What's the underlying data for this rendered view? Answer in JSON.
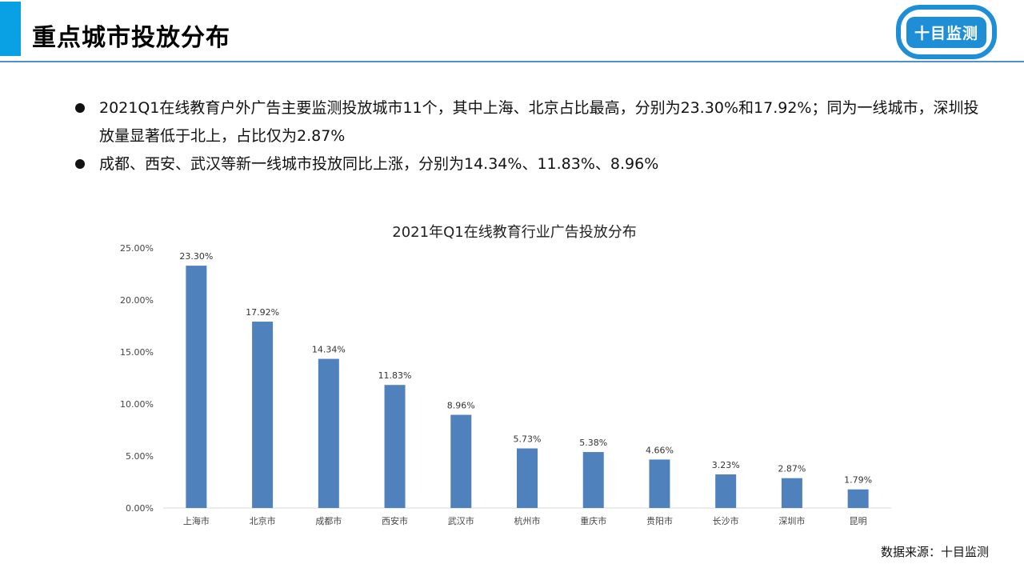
{
  "header": {
    "title": "重点城市投放分布",
    "logo_text": "十目监测",
    "accent_color": "#0AA1E4",
    "rule_color": "#4F8FCE"
  },
  "bullets": [
    "2021Q1在线教育户外广告主要监测投放城市11个，其中上海、北京占比最高，分别为23.30%和17.92%；同为一线城市，深圳投放量显著低于北上，占比仅为2.87%",
    "成都、西安、武汉等新一线城市投放同比上涨，分别为14.34%、11.83%、8.96%"
  ],
  "chart_data": {
    "type": "bar",
    "title": "2021年Q1在线教育行业广告投放分布",
    "categories": [
      "上海市",
      "北京市",
      "成都市",
      "西安市",
      "武汉市",
      "杭州市",
      "重庆市",
      "贵阳市",
      "长沙市",
      "深圳市",
      "昆明"
    ],
    "values": [
      23.3,
      17.92,
      14.34,
      11.83,
      8.96,
      5.73,
      5.38,
      4.66,
      3.23,
      2.87,
      1.79
    ],
    "value_labels": [
      "23.30%",
      "17.92%",
      "14.34%",
      "11.83%",
      "8.96%",
      "5.73%",
      "5.38%",
      "4.66%",
      "3.23%",
      "2.87%",
      "1.79%"
    ],
    "yticks": [
      "0.00%",
      "5.00%",
      "10.00%",
      "15.00%",
      "20.00%",
      "25.00%"
    ],
    "ylim": [
      0,
      25
    ],
    "bar_color": "#4F81BD",
    "grid": false
  },
  "footer": {
    "source": "数据来源：十目监测"
  }
}
